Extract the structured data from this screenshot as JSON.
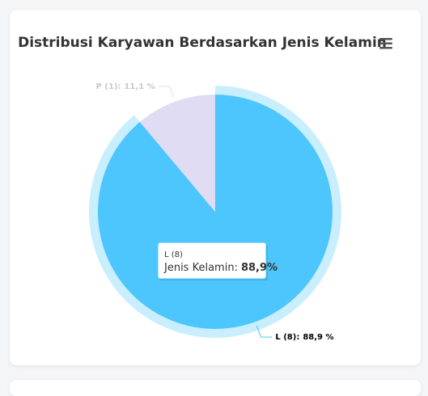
{
  "chart_data": {
    "type": "pie",
    "title": "Distribusi Karyawan Berdasarkan Jenis Kelamin",
    "categories": [
      "L (8)",
      "P (1)"
    ],
    "values": [
      88.9,
      11.1
    ],
    "value_labels": [
      "88,9 %",
      "11,1 %"
    ],
    "label_separator": ":",
    "colors": [
      "#4cc6fd",
      "#dfdcf3"
    ],
    "label_colors": [
      "#000000",
      "#c8c8c8"
    ],
    "highlighted": 0,
    "tooltip": {
      "header": "L (8)",
      "label": "Jenis Kelamin:",
      "value": "88,9%"
    }
  }
}
